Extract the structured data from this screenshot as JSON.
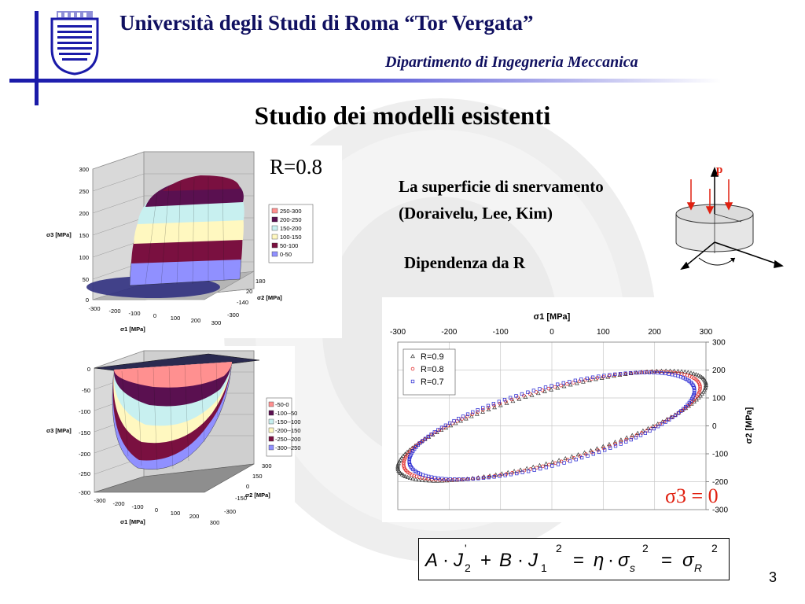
{
  "header": {
    "university": "Università degli Studi di Roma “Tor Vergata”",
    "department": "Dipartimento di Ingegneria Meccanica"
  },
  "slide": {
    "title": "Studio dei modelli esistenti",
    "r_label": "R=0.8",
    "description_line1": "La superficie di snervamento",
    "description_line2": "(Doraivelu, Lee, Kim)",
    "subheading": "Dipendenza da R",
    "page_number": "3"
  },
  "diagram": {
    "pressure_label": "p"
  },
  "plot_top": {
    "z_ticks": [
      "300",
      "250",
      "200",
      "150",
      "100",
      "50",
      "0"
    ],
    "x_ticks": [
      "-300",
      "-200",
      "-100",
      "0",
      "100",
      "200",
      "300"
    ],
    "y_ticks": [
      "180",
      "20",
      "-140",
      "-300"
    ],
    "z_label": "σ3 [MPa]",
    "x_label": "σ1 [MPa]",
    "y_label": "σ2 [MPa]",
    "legend": [
      {
        "label": "250-300",
        "color": "#ff9090"
      },
      {
        "label": "200-250",
        "color": "#5a1050"
      },
      {
        "label": "150-200",
        "color": "#c8f0f0"
      },
      {
        "label": "100-150",
        "color": "#fff8c0"
      },
      {
        "label": "50-100",
        "color": "#7a1040"
      },
      {
        "label": "0-50",
        "color": "#9090ff"
      }
    ]
  },
  "plot_bottom": {
    "z_ticks": [
      "0",
      "-50",
      "-100",
      "-150",
      "-200",
      "-250",
      "-300"
    ],
    "x_ticks": [
      "-300",
      "-200",
      "-100",
      "0",
      "100",
      "200",
      "300"
    ],
    "y_ticks": [
      "300",
      "150",
      "0",
      "-150",
      "-300"
    ],
    "z_label": "σ3 [MPa]",
    "x_label": "σ1 [MPa]",
    "y_label": "σ2 [MPa]",
    "legend": [
      {
        "label": "-50-0",
        "color": "#ff9090"
      },
      {
        "label": "-100--50",
        "color": "#5a1050"
      },
      {
        "label": "-150--100",
        "color": "#c8f0f0"
      },
      {
        "label": "-200--150",
        "color": "#fff8c0"
      },
      {
        "label": "-250--200",
        "color": "#7a1040"
      },
      {
        "label": "-300--250",
        "color": "#9090ff"
      }
    ]
  },
  "ellipse_chart": {
    "x_label": "σ1 [MPa]",
    "y_label": "σ2 [MPa]",
    "x_ticks": [
      "-300",
      "-200",
      "-100",
      "0",
      "100",
      "200",
      "300"
    ],
    "y_ticks": [
      "300",
      "200",
      "100",
      "0",
      "-100",
      "-200",
      "-300"
    ],
    "annotation": "σ3 = 0"
  },
  "chart_data": {
    "type": "scatter",
    "xlabel": "σ1 [MPa]",
    "ylabel": "σ2 [MPa]",
    "xlim": [
      -300,
      300
    ],
    "ylim": [
      -300,
      300
    ],
    "grid": true,
    "legend_position": "top-left",
    "annotation": "σ3 = 0",
    "series": [
      {
        "name": "R=0.9",
        "marker": "triangle",
        "color": "#333333",
        "semi_major": 340,
        "semi_minor": 115,
        "angle_deg": 30
      },
      {
        "name": "R=0.8",
        "marker": "circle",
        "color": "#e02020",
        "semi_major": 326,
        "semi_minor": 121,
        "angle_deg": 30
      },
      {
        "name": "R=0.7",
        "marker": "square",
        "color": "#2020d0",
        "semi_major": 312,
        "semi_minor": 128,
        "angle_deg": 30
      }
    ]
  },
  "equation": {
    "A": "A",
    "dot": "·",
    "J": "J",
    "sub2": "2",
    "prime": "'",
    "plus": "+",
    "B": "B",
    "sub1": "1",
    "sup2": "2",
    "eq": "=",
    "eta": "η",
    "sigma": "σ",
    "subs": "s",
    "subR": "R"
  },
  "colors": {
    "header_blue": "#1a1aa8",
    "accent_red": "#e02010"
  }
}
